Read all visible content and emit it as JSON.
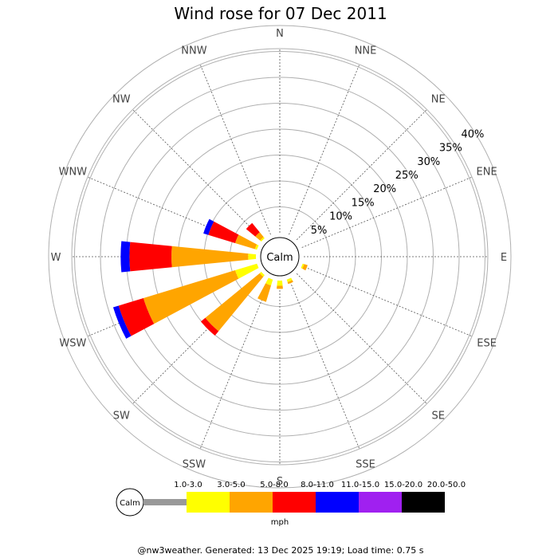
{
  "chart_data": {
    "type": "wind_rose",
    "title": "Wind rose for 07 Dec 2011",
    "center_label": "Calm",
    "units": "mph",
    "radial_max": 40,
    "radial_ticks": [
      "5%",
      "10%",
      "15%",
      "20%",
      "25%",
      "30%",
      "35%",
      "40%"
    ],
    "radial_tick_values": [
      5,
      10,
      15,
      20,
      25,
      30,
      35,
      40
    ],
    "directions": [
      "N",
      "NNE",
      "NE",
      "ENE",
      "E",
      "ESE",
      "SE",
      "SSE",
      "S",
      "SSW",
      "SW",
      "WSW",
      "W",
      "WNW",
      "NW",
      "NNW"
    ],
    "bins": [
      {
        "label": "1.0-3.0",
        "color": "#999999"
      },
      {
        "label": "3.0-5.0",
        "color": "#ffff00"
      },
      {
        "label": "5.0-8.0",
        "color": "#ffa500"
      },
      {
        "label": "8.0-11.0",
        "color": "#ff0000"
      },
      {
        "label": "11.0-15.0",
        "color": "#0000ff"
      },
      {
        "label": "15.0-20.0",
        "color": "#a020f0"
      },
      {
        "label": "20.0-50.0",
        "color": "#000000"
      }
    ],
    "petals": [
      {
        "direction_deg": 112.5,
        "segments": [
          0,
          0.3,
          0.7,
          0,
          0,
          0,
          0
        ]
      },
      {
        "direction_deg": 157.5,
        "segments": [
          0,
          0.5,
          0.4,
          0,
          0,
          0,
          0
        ]
      },
      {
        "direction_deg": 180,
        "segments": [
          0,
          1.0,
          0.6,
          0,
          0,
          0,
          0
        ]
      },
      {
        "direction_deg": 202.5,
        "segments": [
          0,
          1.2,
          3.3,
          0,
          0,
          0,
          0
        ]
      },
      {
        "direction_deg": 225,
        "segments": [
          0,
          0.4,
          13.6,
          1.1,
          0,
          0,
          0
        ]
      },
      {
        "direction_deg": 247.5,
        "segments": [
          0,
          4.4,
          18.5,
          5.0,
          1.1,
          0,
          0
        ]
      },
      {
        "direction_deg": 270,
        "segments": [
          0,
          1.5,
          14.8,
          8.1,
          1.7,
          0,
          0
        ]
      },
      {
        "direction_deg": 292.5,
        "segments": [
          0,
          0.4,
          4.0,
          5.4,
          1.0,
          0,
          0
        ]
      },
      {
        "direction_deg": 315,
        "segments": [
          0,
          0.3,
          1.2,
          2.3,
          0,
          0,
          0
        ]
      }
    ]
  },
  "legend": {
    "calm_label": "Calm",
    "units_label": "mph"
  },
  "footer": {
    "text": "@nw3weather. Generated: 13 Dec 2025 19:19; Load time: 0.75 s"
  }
}
